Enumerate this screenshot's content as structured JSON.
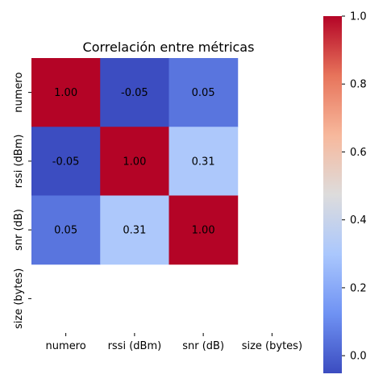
{
  "chart_data": {
    "type": "heatmap",
    "title": "Correlación entre métricas",
    "xlabel": "",
    "ylabel": "",
    "x_labels": [
      "numero",
      "rssi (dBm)",
      "snr (dB)",
      "size (bytes)"
    ],
    "y_labels": [
      "numero",
      "rssi (dBm)",
      "snr (dB)",
      "size (bytes)"
    ],
    "matrix": [
      [
        1.0,
        -0.05,
        0.05,
        null
      ],
      [
        -0.05,
        1.0,
        0.31,
        null
      ],
      [
        0.05,
        0.31,
        1.0,
        null
      ],
      [
        null,
        null,
        null,
        null
      ]
    ],
    "value_format": "0.00",
    "colormap": "coolwarm",
    "colormap_stops": [
      "#3b4cc0",
      "#6f92f3",
      "#aac7fd",
      "#dddcdc",
      "#f7b89c",
      "#e7745b",
      "#b40426"
    ],
    "colorbar": {
      "vmin": -0.0519,
      "vmax": 1.0,
      "ticks": [
        "0.0",
        "0.2",
        "0.4",
        "0.6",
        "0.8",
        "1.0"
      ],
      "tick_values": [
        0.0,
        0.2,
        0.4,
        0.6,
        0.8,
        1.0
      ],
      "position": "right"
    },
    "annotation_colors": {
      "on_dark": "#ffffff",
      "on_light": "#262626"
    },
    "grid": false
  }
}
